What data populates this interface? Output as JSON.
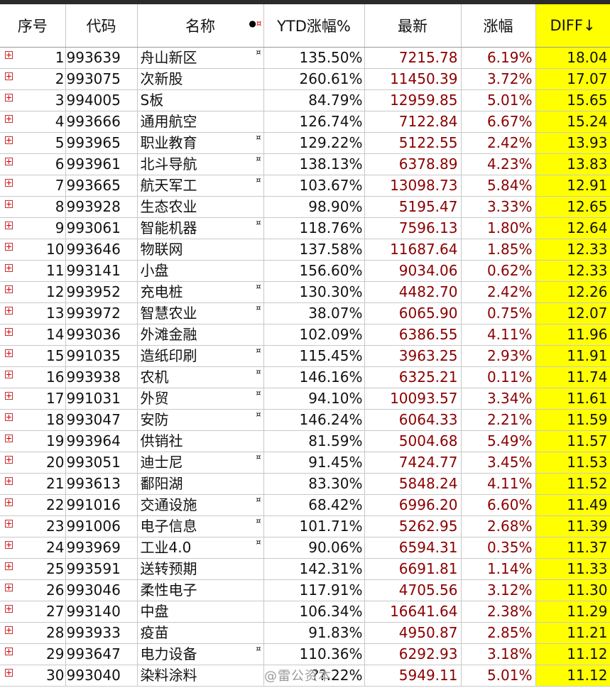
{
  "headers": {
    "idx": "序号",
    "code": "代码",
    "name": "名称",
    "ytd": "YTD涨幅%",
    "latest": "最新",
    "change": "涨幅",
    "diff": "DIFF↓"
  },
  "header_icons": {
    "dot": "●",
    "star": "¤"
  },
  "watermark": "@雷公资本",
  "rows": [
    {
      "idx": "1",
      "code": "993639",
      "name": "舟山新区",
      "flag": "¤",
      "ytd": "135.50%",
      "latest": "7215.78",
      "change": "6.19%",
      "diff": "18.04"
    },
    {
      "idx": "2",
      "code": "993075",
      "name": "次新股",
      "flag": "",
      "ytd": "260.61%",
      "latest": "11450.39",
      "change": "3.72%",
      "diff": "17.07"
    },
    {
      "idx": "3",
      "code": "994005",
      "name": "S板",
      "flag": "",
      "ytd": "84.79%",
      "latest": "12959.85",
      "change": "5.01%",
      "diff": "15.65"
    },
    {
      "idx": "4",
      "code": "993666",
      "name": "通用航空",
      "flag": "",
      "ytd": "126.74%",
      "latest": "7122.84",
      "change": "6.67%",
      "diff": "15.24"
    },
    {
      "idx": "5",
      "code": "993965",
      "name": "职业教育",
      "flag": "¤",
      "ytd": "129.22%",
      "latest": "5122.55",
      "change": "2.42%",
      "diff": "13.93"
    },
    {
      "idx": "6",
      "code": "993961",
      "name": "北斗导航",
      "flag": "¤",
      "ytd": "138.13%",
      "latest": "6378.89",
      "change": "4.23%",
      "diff": "13.83"
    },
    {
      "idx": "7",
      "code": "993665",
      "name": "航天军工",
      "flag": "¤",
      "ytd": "103.67%",
      "latest": "13098.73",
      "change": "5.84%",
      "diff": "12.91"
    },
    {
      "idx": "8",
      "code": "993928",
      "name": "生态农业",
      "flag": "",
      "ytd": "98.90%",
      "latest": "5195.47",
      "change": "3.33%",
      "diff": "12.65"
    },
    {
      "idx": "9",
      "code": "993061",
      "name": "智能机器",
      "flag": "¤",
      "ytd": "118.76%",
      "latest": "7596.13",
      "change": "1.80%",
      "diff": "12.64"
    },
    {
      "idx": "10",
      "code": "993646",
      "name": "物联网",
      "flag": "",
      "ytd": "137.58%",
      "latest": "11687.64",
      "change": "1.85%",
      "diff": "12.33"
    },
    {
      "idx": "11",
      "code": "993141",
      "name": "小盘",
      "flag": "",
      "ytd": "156.60%",
      "latest": "9034.06",
      "change": "0.62%",
      "diff": "12.33"
    },
    {
      "idx": "12",
      "code": "993952",
      "name": "充电桩",
      "flag": "¤",
      "ytd": "130.30%",
      "latest": "4482.70",
      "change": "2.42%",
      "diff": "12.26"
    },
    {
      "idx": "13",
      "code": "993972",
      "name": "智慧农业",
      "flag": "¤",
      "ytd": "38.07%",
      "latest": "6065.90",
      "change": "0.75%",
      "diff": "12.07"
    },
    {
      "idx": "14",
      "code": "993036",
      "name": "外滩金融",
      "flag": "",
      "ytd": "102.09%",
      "latest": "6386.55",
      "change": "4.11%",
      "diff": "11.96"
    },
    {
      "idx": "15",
      "code": "991035",
      "name": "造纸印刷",
      "flag": "¤",
      "ytd": "115.45%",
      "latest": "3963.25",
      "change": "2.93%",
      "diff": "11.91"
    },
    {
      "idx": "16",
      "code": "993938",
      "name": "农机",
      "flag": "¤",
      "ytd": "146.16%",
      "latest": "6325.21",
      "change": "0.11%",
      "diff": "11.74"
    },
    {
      "idx": "17",
      "code": "991031",
      "name": "外贸",
      "flag": "¤",
      "ytd": "94.10%",
      "latest": "10093.57",
      "change": "3.34%",
      "diff": "11.61"
    },
    {
      "idx": "18",
      "code": "993047",
      "name": "安防",
      "flag": "¤",
      "ytd": "146.24%",
      "latest": "6064.33",
      "change": "2.21%",
      "diff": "11.59"
    },
    {
      "idx": "19",
      "code": "993964",
      "name": "供销社",
      "flag": "",
      "ytd": "81.59%",
      "latest": "5004.68",
      "change": "5.49%",
      "diff": "11.57"
    },
    {
      "idx": "20",
      "code": "993051",
      "name": "迪士尼",
      "flag": "¤",
      "ytd": "91.45%",
      "latest": "7424.77",
      "change": "3.45%",
      "diff": "11.53"
    },
    {
      "idx": "21",
      "code": "993613",
      "name": "鄱阳湖",
      "flag": "",
      "ytd": "83.30%",
      "latest": "5848.24",
      "change": "4.11%",
      "diff": "11.52"
    },
    {
      "idx": "22",
      "code": "991016",
      "name": "交通设施",
      "flag": "¤",
      "ytd": "68.42%",
      "latest": "6996.20",
      "change": "6.60%",
      "diff": "11.49"
    },
    {
      "idx": "23",
      "code": "991006",
      "name": "电子信息",
      "flag": "¤",
      "ytd": "101.71%",
      "latest": "5262.95",
      "change": "2.68%",
      "diff": "11.39"
    },
    {
      "idx": "24",
      "code": "993969",
      "name": "工业4.0",
      "flag": "¤",
      "ytd": "90.06%",
      "latest": "6594.31",
      "change": "0.35%",
      "diff": "11.37"
    },
    {
      "idx": "25",
      "code": "993591",
      "name": "送转预期",
      "flag": "",
      "ytd": "142.31%",
      "latest": "6691.81",
      "change": "1.14%",
      "diff": "11.33"
    },
    {
      "idx": "26",
      "code": "993046",
      "name": "柔性电子",
      "flag": "",
      "ytd": "117.91%",
      "latest": "4705.56",
      "change": "3.12%",
      "diff": "11.30"
    },
    {
      "idx": "27",
      "code": "993140",
      "name": "中盘",
      "flag": "",
      "ytd": "106.34%",
      "latest": "16641.64",
      "change": "2.38%",
      "diff": "11.29"
    },
    {
      "idx": "28",
      "code": "993933",
      "name": "疫苗",
      "flag": "",
      "ytd": "91.83%",
      "latest": "4950.87",
      "change": "2.85%",
      "diff": "11.21"
    },
    {
      "idx": "29",
      "code": "993647",
      "name": "电力设备",
      "flag": "¤",
      "ytd": "110.36%",
      "latest": "6292.93",
      "change": "3.18%",
      "diff": "11.12"
    },
    {
      "idx": "30",
      "code": "993040",
      "name": "染料涂料",
      "flag": "",
      "ytd": "??.22%",
      "latest": "5949.11",
      "change": "5.01%",
      "diff": "11.12"
    }
  ]
}
